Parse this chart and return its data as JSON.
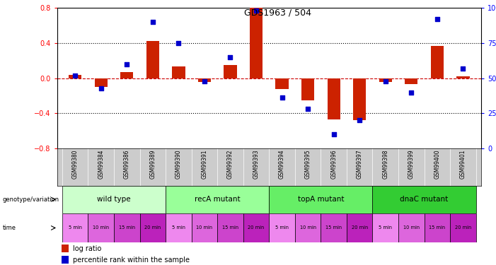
{
  "title": "GDS1963 / 504",
  "samples": [
    "GSM99380",
    "GSM99384",
    "GSM99386",
    "GSM99389",
    "GSM99390",
    "GSM99391",
    "GSM99392",
    "GSM99393",
    "GSM99394",
    "GSM99395",
    "GSM99396",
    "GSM99397",
    "GSM99398",
    "GSM99399",
    "GSM99400",
    "GSM99401"
  ],
  "log_ratio": [
    0.04,
    -0.1,
    0.07,
    0.42,
    0.13,
    -0.04,
    0.15,
    0.8,
    -0.12,
    -0.25,
    -0.47,
    -0.48,
    -0.04,
    -0.07,
    0.37,
    0.02
  ],
  "percentile": [
    52,
    43,
    60,
    90,
    75,
    48,
    65,
    98,
    36,
    28,
    10,
    20,
    48,
    40,
    92,
    57
  ],
  "groups": [
    {
      "label": "wild type",
      "start": 0,
      "end": 4,
      "color": "#ccffcc"
    },
    {
      "label": "recA mutant",
      "start": 4,
      "end": 8,
      "color": "#99ff99"
    },
    {
      "label": "topA mutant",
      "start": 8,
      "end": 12,
      "color": "#66ee66"
    },
    {
      "label": "dnaC mutant",
      "start": 12,
      "end": 16,
      "color": "#33cc33"
    }
  ],
  "time_labels": [
    "5 min",
    "10 min",
    "15 min",
    "20 min",
    "5 min",
    "10 min",
    "15 min",
    "20 min",
    "5 min",
    "10 min",
    "15 min",
    "20 min",
    "5 min",
    "10 min",
    "15 min",
    "20 min"
  ],
  "time_colors": [
    "#ee88ee",
    "#dd66dd",
    "#cc44cc",
    "#bb22bb",
    "#ee88ee",
    "#dd66dd",
    "#cc44cc",
    "#bb22bb",
    "#ee88ee",
    "#dd66dd",
    "#cc44cc",
    "#bb22bb",
    "#ee88ee",
    "#dd66dd",
    "#cc44cc",
    "#bb22bb"
  ],
  "bar_color": "#cc2200",
  "dot_color": "#0000cc",
  "zero_line_color": "#cc0000",
  "ylim_left": [
    -0.8,
    0.8
  ],
  "ylim_right": [
    0,
    100
  ],
  "yticks_left": [
    -0.8,
    -0.4,
    0.0,
    0.4,
    0.8
  ],
  "yticks_right": [
    0,
    25,
    50,
    75,
    100
  ],
  "sample_bg_color": "#cccccc",
  "background_color": "#ffffff"
}
